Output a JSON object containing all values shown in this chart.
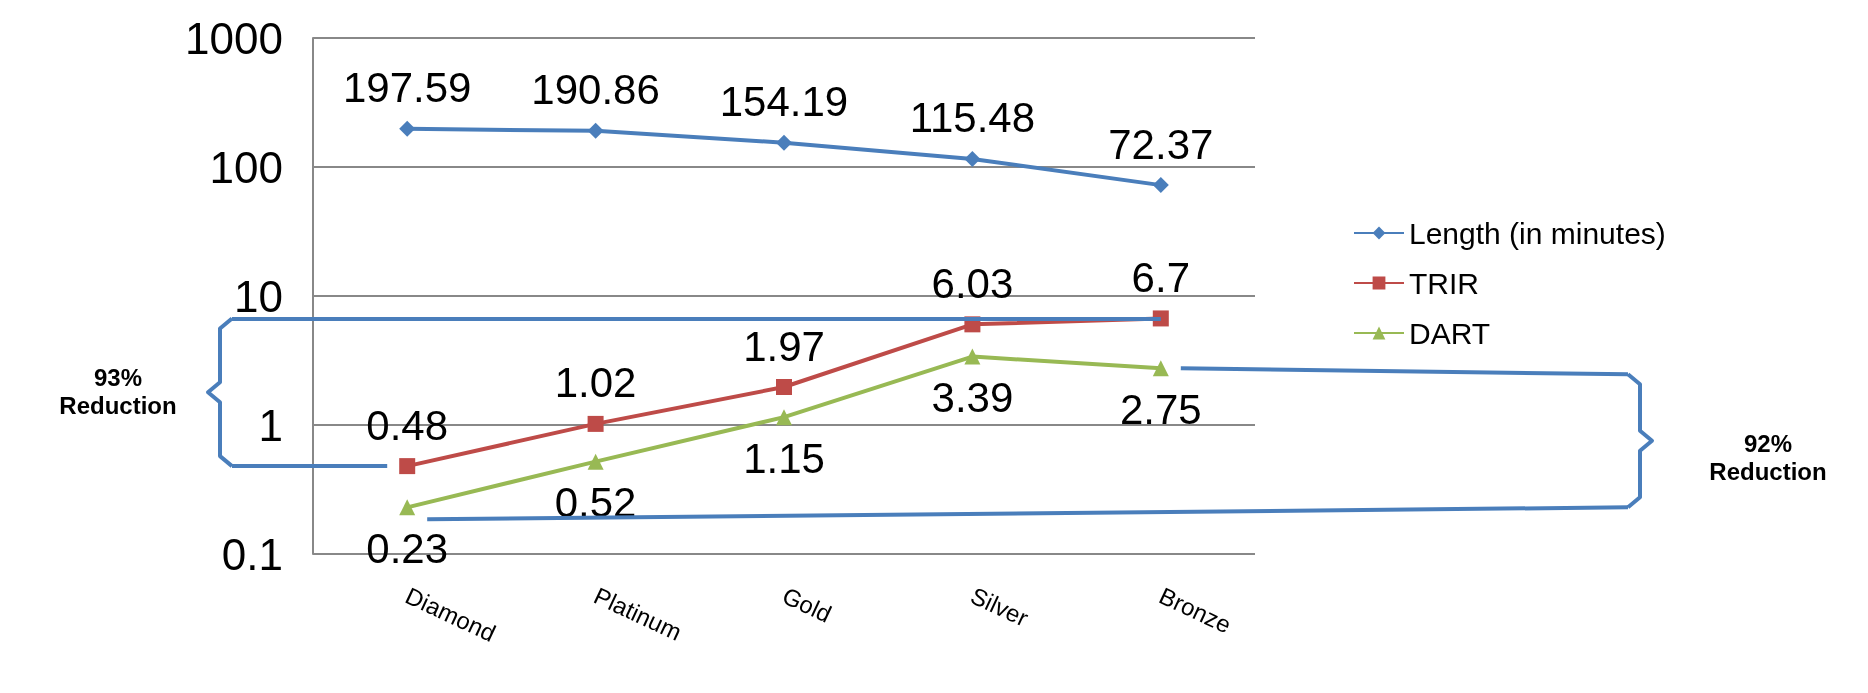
{
  "chart_data": {
    "type": "line",
    "categories": [
      "Diamond",
      "Platinum",
      "Gold",
      "Silver",
      "Bronze"
    ],
    "series": [
      {
        "name": "Length (in minutes)",
        "color": "#4a7ebb",
        "marker": "diamond",
        "values": [
          197.59,
          190.86,
          154.19,
          115.48,
          72.37
        ]
      },
      {
        "name": "TRIR",
        "color": "#be4b48",
        "marker": "square",
        "values": [
          0.48,
          1.02,
          1.97,
          6.03,
          6.7
        ]
      },
      {
        "name": "DART",
        "color": "#98b954",
        "marker": "triangle",
        "values": [
          0.23,
          0.52,
          1.15,
          3.39,
          2.75
        ]
      }
    ],
    "ref_lines": [
      {
        "axis": "y",
        "value": 6.7,
        "color": "#4a7ebb"
      }
    ],
    "log": true,
    "ylim": [
      0.1,
      1000
    ],
    "yticks": [
      0.1,
      1,
      10,
      100,
      1000
    ],
    "grid": "y",
    "legend": "right",
    "data_labels": true,
    "annotations": [
      "93%\nReduction",
      "92%\nReduction"
    ]
  }
}
